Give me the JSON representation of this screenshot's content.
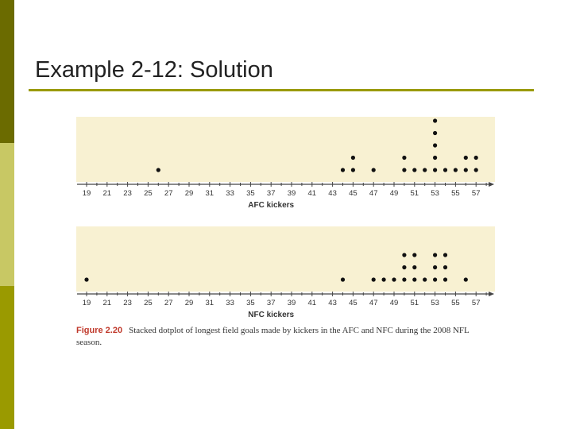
{
  "slide": {
    "title": "Example 2-12: Solution"
  },
  "figure": {
    "label": "Figure 2.20",
    "caption": "Stacked dotplot of longest field goals made by kickers in the AFC and NFC during the 2008 NFL season."
  },
  "chart_data": [
    {
      "type": "scatter",
      "xlabel": "AFC kickers",
      "xlim": [
        19,
        58
      ],
      "ticks": [
        19,
        21,
        23,
        25,
        27,
        29,
        31,
        33,
        35,
        37,
        39,
        41,
        43,
        45,
        47,
        49,
        51,
        53,
        55,
        57
      ],
      "x": [
        26,
        44,
        45,
        47,
        50,
        51,
        52,
        53,
        54,
        55,
        56,
        57
      ],
      "counts": [
        1,
        1,
        2,
        1,
        2,
        1,
        1,
        5,
        1,
        1,
        2,
        2
      ]
    },
    {
      "type": "scatter",
      "xlabel": "NFC kickers",
      "xlim": [
        19,
        58
      ],
      "ticks": [
        19,
        21,
        23,
        25,
        27,
        29,
        31,
        33,
        35,
        37,
        39,
        41,
        43,
        45,
        47,
        49,
        51,
        53,
        55,
        57
      ],
      "x": [
        19,
        44,
        47,
        48,
        49,
        50,
        51,
        52,
        53,
        54,
        56
      ],
      "counts": [
        1,
        1,
        1,
        1,
        1,
        3,
        3,
        1,
        3,
        3,
        1
      ]
    }
  ]
}
